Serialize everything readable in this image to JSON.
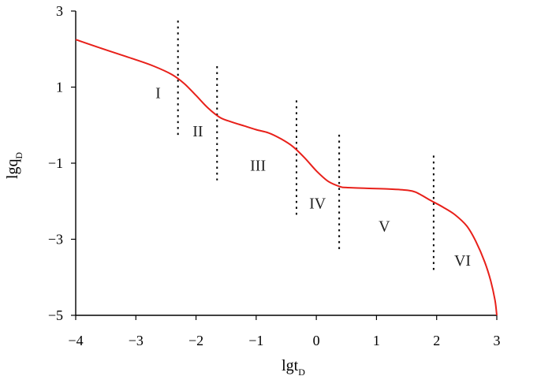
{
  "chart_data": {
    "type": "line",
    "xlabel": {
      "main": "lgt",
      "sub": "D"
    },
    "ylabel": {
      "main": "lgq",
      "sub": "D"
    },
    "xlim": [
      -4,
      3
    ],
    "ylim": [
      -5,
      3
    ],
    "x_ticks": [
      -4,
      -3,
      -2,
      -1,
      0,
      1,
      2,
      3
    ],
    "y_ticks": [
      -5,
      -3,
      -1,
      1,
      3
    ],
    "x_tick_labels": [
      "−4",
      "−3",
      "−2",
      "−1",
      "0",
      "1",
      "2",
      "3"
    ],
    "y_tick_labels": [
      "−5",
      "−3",
      "−1",
      "1",
      "3"
    ],
    "grid": false,
    "series": [
      {
        "color": "#e8201a",
        "x": [
          -4.0,
          -3.5,
          -3.0,
          -2.7,
          -2.4,
          -2.2,
          -2.0,
          -1.8,
          -1.6,
          -1.4,
          -1.2,
          -1.0,
          -0.8,
          -0.6,
          -0.4,
          -0.2,
          0.0,
          0.2,
          0.4,
          0.5,
          0.8,
          1.2,
          1.5,
          1.65,
          1.9,
          2.1,
          2.3,
          2.5,
          2.65,
          2.8,
          2.9,
          2.97,
          3.0
        ],
        "y": [
          2.25,
          1.98,
          1.72,
          1.55,
          1.33,
          1.1,
          0.78,
          0.45,
          0.2,
          0.08,
          -0.02,
          -0.12,
          -0.2,
          -0.35,
          -0.55,
          -0.85,
          -1.2,
          -1.48,
          -1.62,
          -1.64,
          -1.66,
          -1.68,
          -1.71,
          -1.76,
          -1.98,
          -2.15,
          -2.35,
          -2.65,
          -3.05,
          -3.6,
          -4.1,
          -4.6,
          -5.0
        ]
      }
    ],
    "dividers": [
      {
        "x": -2.3,
        "y_range": [
          -0.35,
          2.75
        ]
      },
      {
        "x": -1.65,
        "y_range": [
          -1.45,
          1.55
        ]
      },
      {
        "x": -0.33,
        "y_range": [
          -2.45,
          0.65
        ]
      },
      {
        "x": 0.38,
        "y_range": [
          -3.3,
          -0.25
        ]
      },
      {
        "x": 1.95,
        "y_range": [
          -3.85,
          -0.8
        ]
      }
    ],
    "regions": [
      {
        "label": "I",
        "x": -2.63,
        "y": 0.85
      },
      {
        "label": "II",
        "x": -1.97,
        "y": -0.15
      },
      {
        "label": "III",
        "x": -0.97,
        "y": -1.05
      },
      {
        "label": "IV",
        "x": 0.02,
        "y": -2.05
      },
      {
        "label": "V",
        "x": 1.13,
        "y": -2.65
      },
      {
        "label": "VI",
        "x": 2.43,
        "y": -3.55
      }
    ]
  }
}
